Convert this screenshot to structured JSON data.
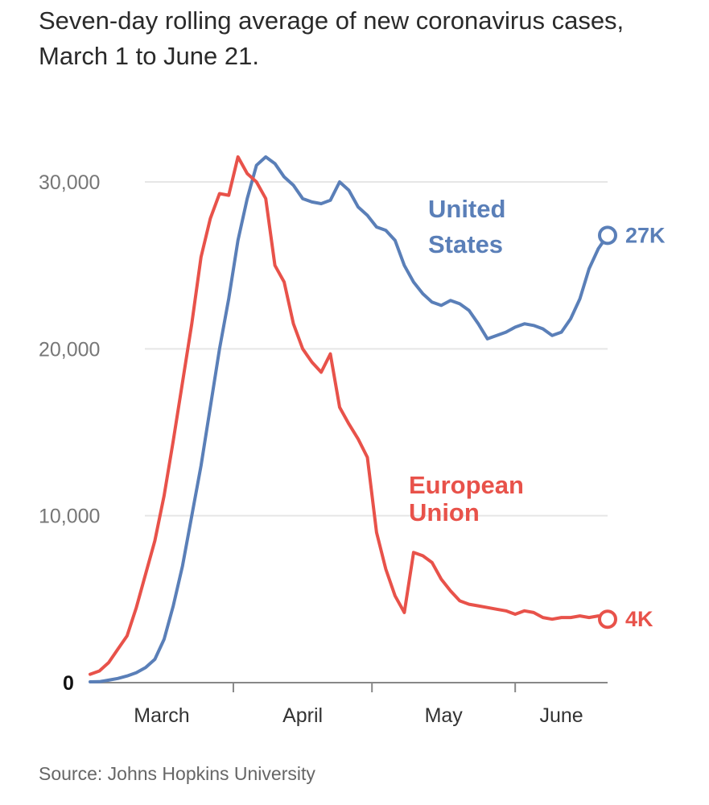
{
  "title": "Seven-day rolling average of new coronavirus cases, March 1 to June 21.",
  "source": "Source: Johns Hopkins University",
  "colors": {
    "us": "#5a7fb8",
    "eu": "#e8524a",
    "grid": "#e6e6e6",
    "axis": "#888888"
  },
  "chart_data": {
    "type": "line",
    "title": "Seven-day rolling average of new coronavirus cases, March 1 to June 21.",
    "xlabel": "",
    "ylabel": "",
    "x_start": "March 1",
    "x_end": "June 21",
    "xlim": [
      "2020-03-01",
      "2020-06-21"
    ],
    "ylim": [
      0,
      32000
    ],
    "y_ticks": [
      {
        "value": 0,
        "label": "0"
      },
      {
        "value": 10000,
        "label": "10,000"
      },
      {
        "value": 20000,
        "label": "20,000"
      },
      {
        "value": 30000,
        "label": "30,000"
      }
    ],
    "x_ticks": [
      {
        "date": "2020-03-01",
        "label": "March"
      },
      {
        "date": "2020-04-01",
        "label": "April"
      },
      {
        "date": "2020-05-01",
        "label": "May"
      },
      {
        "date": "2020-06-01",
        "label": "June"
      }
    ],
    "grid": true,
    "series": [
      {
        "name": "United States",
        "label_lines": [
          "United",
          "States"
        ],
        "end_label": "27K",
        "color": "#5a7fb8",
        "values": [
          [
            "2020-03-01",
            50
          ],
          [
            "2020-03-03",
            60
          ],
          [
            "2020-03-05",
            150
          ],
          [
            "2020-03-07",
            250
          ],
          [
            "2020-03-09",
            400
          ],
          [
            "2020-03-11",
            600
          ],
          [
            "2020-03-13",
            900
          ],
          [
            "2020-03-15",
            1400
          ],
          [
            "2020-03-17",
            2600
          ],
          [
            "2020-03-19",
            4600
          ],
          [
            "2020-03-21",
            7000
          ],
          [
            "2020-03-23",
            10000
          ],
          [
            "2020-03-25",
            13000
          ],
          [
            "2020-03-27",
            16500
          ],
          [
            "2020-03-29",
            20000
          ],
          [
            "2020-03-31",
            23000
          ],
          [
            "2020-04-02",
            26500
          ],
          [
            "2020-04-04",
            29000
          ],
          [
            "2020-04-06",
            31000
          ],
          [
            "2020-04-08",
            31500
          ],
          [
            "2020-04-10",
            31100
          ],
          [
            "2020-04-12",
            30300
          ],
          [
            "2020-04-14",
            29800
          ],
          [
            "2020-04-16",
            29000
          ],
          [
            "2020-04-18",
            28800
          ],
          [
            "2020-04-20",
            28700
          ],
          [
            "2020-04-22",
            28900
          ],
          [
            "2020-04-24",
            30000
          ],
          [
            "2020-04-26",
            29500
          ],
          [
            "2020-04-28",
            28500
          ],
          [
            "2020-04-30",
            28000
          ],
          [
            "2020-05-02",
            27300
          ],
          [
            "2020-05-04",
            27100
          ],
          [
            "2020-05-06",
            26500
          ],
          [
            "2020-05-08",
            25000
          ],
          [
            "2020-05-10",
            24000
          ],
          [
            "2020-05-12",
            23300
          ],
          [
            "2020-05-14",
            22800
          ],
          [
            "2020-05-16",
            22600
          ],
          [
            "2020-05-18",
            22900
          ],
          [
            "2020-05-20",
            22700
          ],
          [
            "2020-05-22",
            22300
          ],
          [
            "2020-05-24",
            21500
          ],
          [
            "2020-05-26",
            20600
          ],
          [
            "2020-05-28",
            20800
          ],
          [
            "2020-05-30",
            21000
          ],
          [
            "2020-06-01",
            21300
          ],
          [
            "2020-06-03",
            21500
          ],
          [
            "2020-06-05",
            21400
          ],
          [
            "2020-06-07",
            21200
          ],
          [
            "2020-06-09",
            20800
          ],
          [
            "2020-06-11",
            21000
          ],
          [
            "2020-06-13",
            21800
          ],
          [
            "2020-06-15",
            23000
          ],
          [
            "2020-06-17",
            24800
          ],
          [
            "2020-06-19",
            26000
          ],
          [
            "2020-06-21",
            26800
          ]
        ]
      },
      {
        "name": "European Union",
        "label_lines": [
          "European",
          "Union"
        ],
        "end_label": "4K",
        "color": "#e8524a",
        "values": [
          [
            "2020-03-01",
            500
          ],
          [
            "2020-03-03",
            700
          ],
          [
            "2020-03-05",
            1200
          ],
          [
            "2020-03-07",
            2000
          ],
          [
            "2020-03-09",
            2800
          ],
          [
            "2020-03-11",
            4500
          ],
          [
            "2020-03-13",
            6500
          ],
          [
            "2020-03-15",
            8500
          ],
          [
            "2020-03-17",
            11200
          ],
          [
            "2020-03-19",
            14500
          ],
          [
            "2020-03-21",
            18000
          ],
          [
            "2020-03-23",
            21500
          ],
          [
            "2020-03-25",
            25500
          ],
          [
            "2020-03-27",
            27800
          ],
          [
            "2020-03-29",
            29300
          ],
          [
            "2020-03-31",
            29200
          ],
          [
            "2020-04-02",
            31500
          ],
          [
            "2020-04-04",
            30500
          ],
          [
            "2020-04-06",
            30000
          ],
          [
            "2020-04-08",
            29000
          ],
          [
            "2020-04-10",
            25000
          ],
          [
            "2020-04-12",
            24000
          ],
          [
            "2020-04-14",
            21500
          ],
          [
            "2020-04-16",
            20000
          ],
          [
            "2020-04-18",
            19200
          ],
          [
            "2020-04-20",
            18600
          ],
          [
            "2020-04-22",
            19700
          ],
          [
            "2020-04-24",
            16500
          ],
          [
            "2020-04-26",
            15500
          ],
          [
            "2020-04-28",
            14600
          ],
          [
            "2020-04-30",
            13500
          ],
          [
            "2020-05-02",
            9000
          ],
          [
            "2020-05-04",
            6800
          ],
          [
            "2020-05-06",
            5200
          ],
          [
            "2020-05-08",
            4200
          ],
          [
            "2020-05-10",
            7800
          ],
          [
            "2020-05-12",
            7600
          ],
          [
            "2020-05-14",
            7200
          ],
          [
            "2020-05-16",
            6200
          ],
          [
            "2020-05-18",
            5500
          ],
          [
            "2020-05-20",
            4900
          ],
          [
            "2020-05-22",
            4700
          ],
          [
            "2020-05-24",
            4600
          ],
          [
            "2020-05-26",
            4500
          ],
          [
            "2020-05-28",
            4400
          ],
          [
            "2020-05-30",
            4300
          ],
          [
            "2020-06-01",
            4100
          ],
          [
            "2020-06-03",
            4300
          ],
          [
            "2020-06-05",
            4200
          ],
          [
            "2020-06-07",
            3900
          ],
          [
            "2020-06-09",
            3800
          ],
          [
            "2020-06-11",
            3900
          ],
          [
            "2020-06-13",
            3900
          ],
          [
            "2020-06-15",
            4000
          ],
          [
            "2020-06-17",
            3900
          ],
          [
            "2020-06-19",
            4000
          ],
          [
            "2020-06-21",
            3800
          ]
        ]
      }
    ]
  }
}
